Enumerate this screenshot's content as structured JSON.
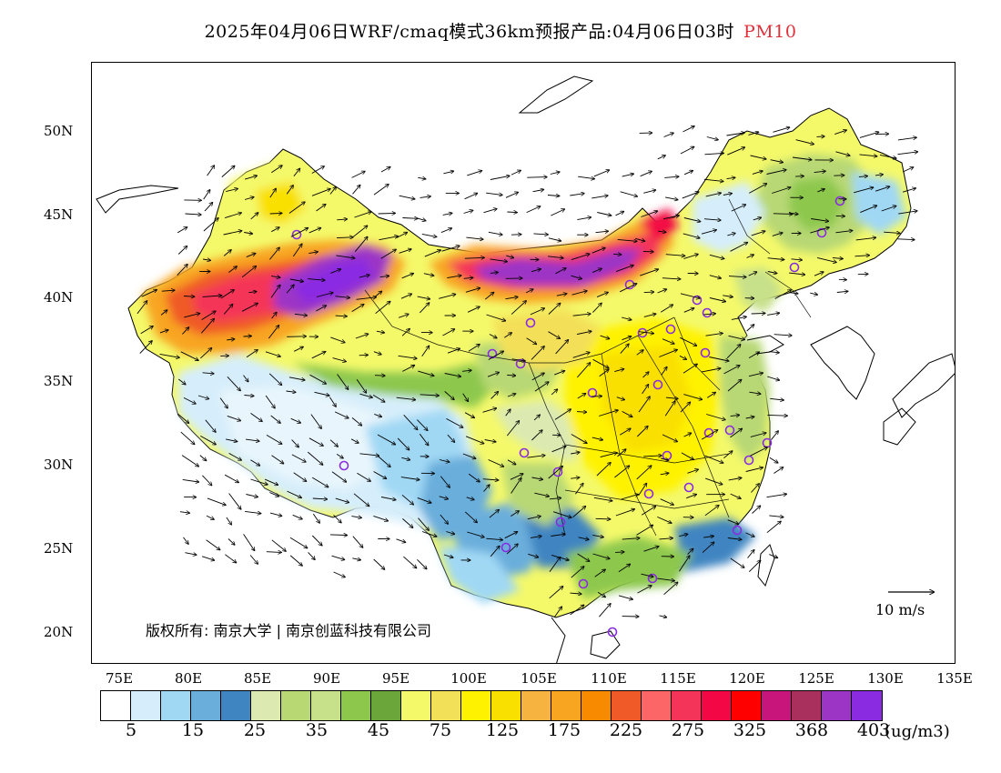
{
  "title": {
    "main": "2025年04月06日WRF/cmaq模式36km预报产品:04月06日03时",
    "variable": "PM10"
  },
  "map": {
    "lat_labels": [
      "50N",
      "45N",
      "40N",
      "35N",
      "30N",
      "25N",
      "20N"
    ],
    "lon_labels": [
      "75E",
      "80E",
      "85E",
      "90E",
      "95E",
      "100E",
      "105E",
      "110E",
      "115E",
      "120E",
      "125E",
      "130E",
      "135E"
    ],
    "copyright": "版权所有: 南京大学 | 南京创蓝科技有限公司",
    "wind_scale_label": "10 m/s"
  },
  "legend": {
    "colors": [
      "#ffffff",
      "#d6eefb",
      "#a0d8f4",
      "#6aaedc",
      "#3f85c1",
      "#dceab2",
      "#b8d874",
      "#c7e08a",
      "#8dc84d",
      "#6aa63a",
      "#f4f96a",
      "#f3e059",
      "#fff200",
      "#f9e000",
      "#f7b340",
      "#f8a521",
      "#f88a00",
      "#f05a28",
      "#fd6666",
      "#f43458",
      "#f30845",
      "#ff0000",
      "#c8157c",
      "#a92f5c",
      "#9c35c6",
      "#8a2be2"
    ],
    "labels": [
      "5",
      "15",
      "25",
      "35",
      "45",
      "75",
      "125",
      "175",
      "225",
      "275",
      "325",
      "368",
      "403"
    ],
    "unit": "(ug/m3)"
  }
}
